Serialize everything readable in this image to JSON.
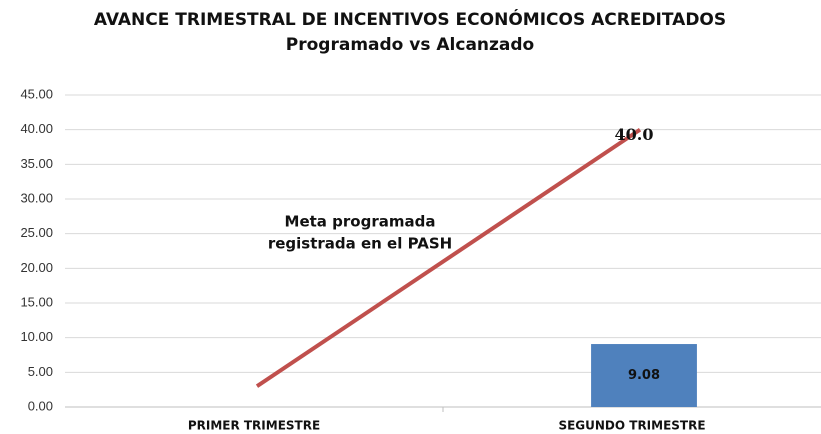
{
  "chart_data": {
    "type": "combo",
    "title": "AVANCE TRIMESTRAL DE INCENTIVOS ECONÓMICOS ACREDITADOS",
    "subtitle": "Programado vs Alcanzado",
    "annotations": [
      "Meta programada",
      "registrada en el PASH"
    ],
    "categories": [
      "PRIMER TRIMESTRE",
      "SEGUNDO TRIMESTRE"
    ],
    "series": [
      {
        "type": "line",
        "color": "#c0504d",
        "values": [
          3,
          40
        ],
        "value_labels": [
          null,
          "40.0"
        ]
      },
      {
        "type": "bar",
        "color": "#4f81bd",
        "values": [
          null,
          9.08
        ],
        "value_labels": [
          null,
          "9.08"
        ]
      }
    ],
    "ylim": [
      0,
      45
    ],
    "yticks": [
      {
        "value": 0,
        "label": "0.00"
      },
      {
        "value": 5,
        "label": "5.00"
      },
      {
        "value": 10,
        "label": "10.00"
      },
      {
        "value": 15,
        "label": "15.00"
      },
      {
        "value": 20,
        "label": "20.00"
      },
      {
        "value": 25,
        "label": "25.00"
      },
      {
        "value": 30,
        "label": "30.00"
      },
      {
        "value": 35,
        "label": "35.00"
      },
      {
        "value": 40,
        "label": "40.00"
      },
      {
        "value": 45,
        "label": "45.00"
      }
    ],
    "grid": true
  }
}
